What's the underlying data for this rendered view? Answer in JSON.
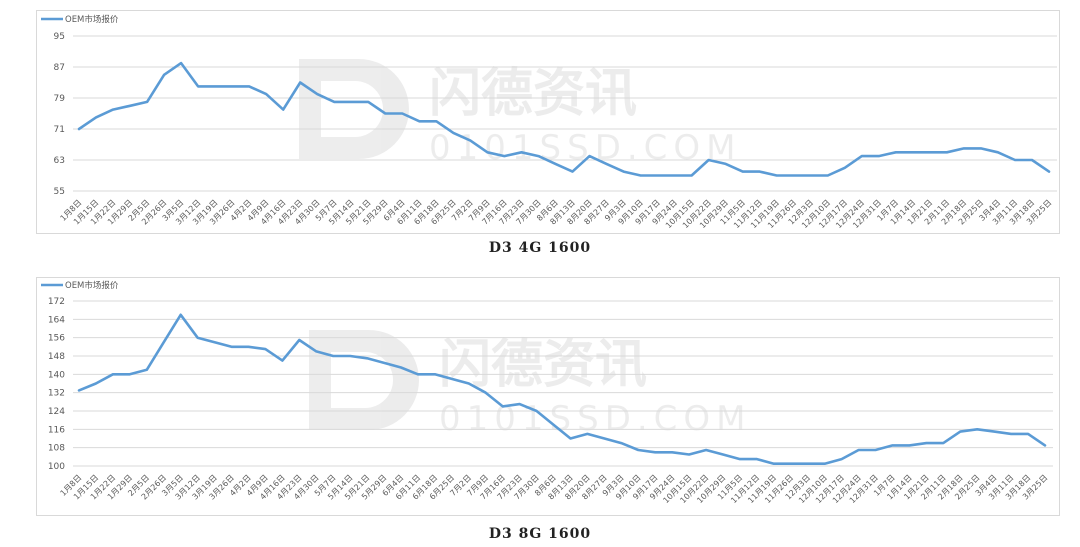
{
  "watermark": {
    "brand_text": "闪德资讯",
    "domain_text": "0101SSD.COM"
  },
  "chart_data": [
    {
      "type": "line",
      "title": "D3 4G 1600",
      "xlabel": "",
      "ylabel": "",
      "ylim": [
        55,
        95
      ],
      "yticks": [
        55,
        63,
        71,
        79,
        87,
        95
      ],
      "grid": true,
      "legend_position": "top-left",
      "categories": [
        "1月8日",
        "1月15日",
        "1月22日",
        "1月29日",
        "2月5日",
        "2月26日",
        "3月5日",
        "3月12日",
        "3月19日",
        "3月26日",
        "4月2日",
        "4月9日",
        "4月16日",
        "4月23日",
        "4月30日",
        "5月7日",
        "5月14日",
        "5月21日",
        "5月29日",
        "6月4日",
        "6月11日",
        "6月18日",
        "6月25日",
        "7月2日",
        "7月9日",
        "7月16日",
        "7月23日",
        "7月30日",
        "8月6日",
        "8月13日",
        "8月20日",
        "8月27日",
        "9月3日",
        "9月10日",
        "9月17日",
        "9月24日",
        "10月15日",
        "10月22日",
        "10月29日",
        "11月5日",
        "11月12日",
        "11月19日",
        "11月26日",
        "12月3日",
        "12月10日",
        "12月17日",
        "12月24日",
        "12月31日",
        "1月7日",
        "1月14日",
        "1月21日",
        "2月11日",
        "2月18日",
        "2月25日",
        "3月4日",
        "3月11日",
        "3月18日",
        "3月25日"
      ],
      "series": [
        {
          "name": "OEM市场报价",
          "color": "#5b9bd5",
          "values": [
            71,
            74,
            76,
            77,
            78,
            85,
            88,
            82,
            82,
            82,
            82,
            80,
            76,
            83,
            80,
            78,
            78,
            78,
            75,
            75,
            73,
            73,
            70,
            68,
            65,
            64,
            65,
            64,
            62,
            60,
            64,
            62,
            60,
            59,
            59,
            59,
            59,
            63,
            62,
            60,
            60,
            59,
            59,
            59,
            59,
            61,
            64,
            64,
            65,
            65,
            65,
            65,
            66,
            66,
            65,
            63,
            63,
            60
          ]
        }
      ]
    },
    {
      "type": "line",
      "title": "D3 8G 1600",
      "xlabel": "",
      "ylabel": "",
      "ylim": [
        100,
        172
      ],
      "yticks": [
        100,
        108,
        116,
        124,
        132,
        140,
        148,
        156,
        164,
        172
      ],
      "grid": true,
      "legend_position": "top-left",
      "categories": [
        "1月8日",
        "1月15日",
        "1月22日",
        "1月29日",
        "2月5日",
        "2月26日",
        "3月5日",
        "3月12日",
        "3月19日",
        "3月26日",
        "4月2日",
        "4月9日",
        "4月16日",
        "4月23日",
        "4月30日",
        "5月7日",
        "5月14日",
        "5月21日",
        "5月29日",
        "6月4日",
        "6月11日",
        "6月18日",
        "6月25日",
        "7月2日",
        "7月9日",
        "7月16日",
        "7月23日",
        "7月30日",
        "8月6日",
        "8月13日",
        "8月20日",
        "8月27日",
        "9月3日",
        "9月10日",
        "9月17日",
        "9月24日",
        "10月15日",
        "10月22日",
        "10月29日",
        "11月5日",
        "11月12日",
        "11月19日",
        "11月26日",
        "12月3日",
        "12月10日",
        "12月17日",
        "12月24日",
        "12月31日",
        "1月7日",
        "1月14日",
        "1月21日",
        "2月11日",
        "2月18日",
        "2月25日",
        "3月4日",
        "3月11日",
        "3月18日",
        "3月25日"
      ],
      "series": [
        {
          "name": "OEM市场报价",
          "color": "#5b9bd5",
          "values": [
            133,
            136,
            140,
            140,
            142,
            154,
            166,
            156,
            154,
            152,
            152,
            151,
            146,
            155,
            150,
            148,
            148,
            147,
            145,
            143,
            140,
            140,
            138,
            136,
            132,
            126,
            127,
            124,
            118,
            112,
            114,
            112,
            110,
            107,
            106,
            106,
            105,
            107,
            105,
            103,
            103,
            101,
            101,
            101,
            101,
            103,
            107,
            107,
            109,
            109,
            110,
            110,
            115,
            116,
            115,
            114,
            114,
            109
          ]
        }
      ]
    }
  ]
}
